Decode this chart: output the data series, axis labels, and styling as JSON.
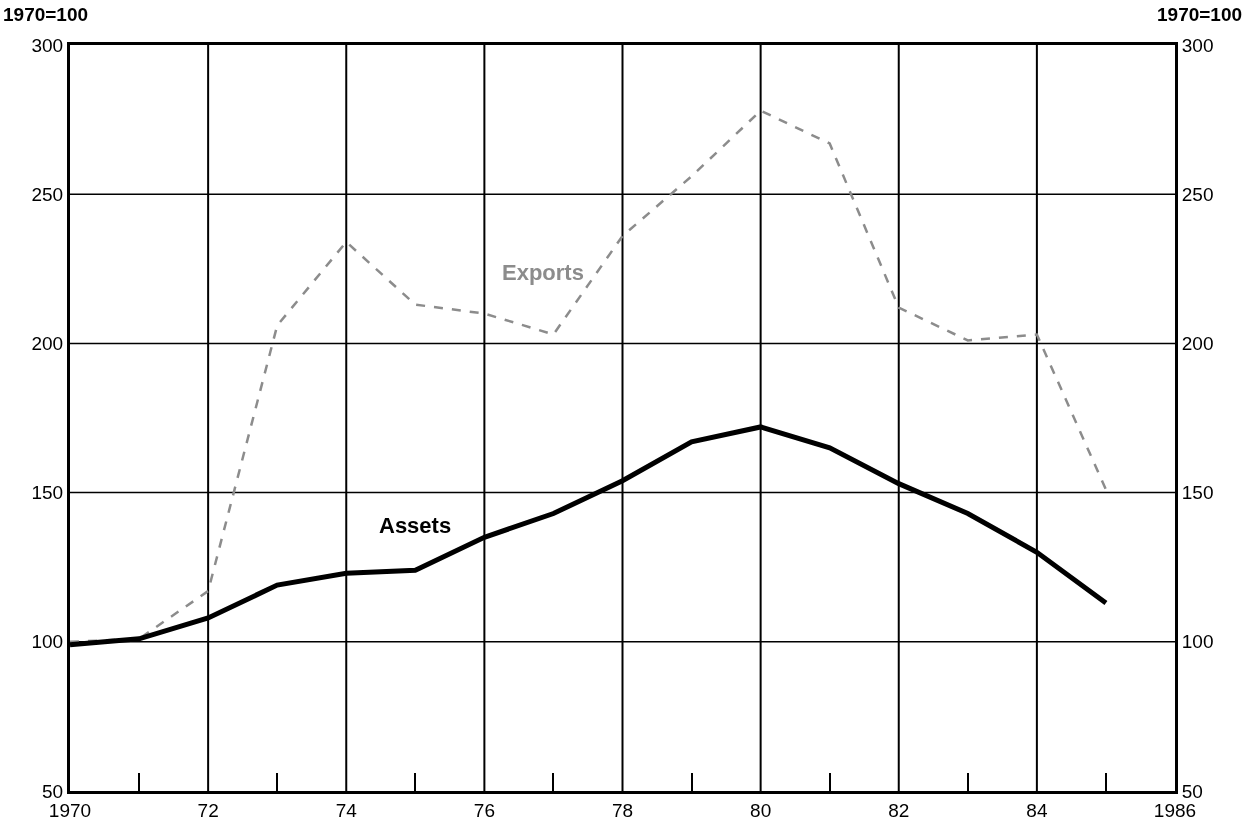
{
  "chart_data": {
    "type": "line",
    "ylabel": "1970=100",
    "y2label": "1970=100",
    "x": [
      1970,
      1971,
      1972,
      1973,
      1974,
      1975,
      1976,
      1977,
      1978,
      1979,
      1980,
      1981,
      1982,
      1983,
      1984,
      1985
    ],
    "series": [
      {
        "name": "Exports",
        "color": "#8c8c8c",
        "line_style": "dashed",
        "values": [
          100,
          101,
          117,
          206,
          234,
          213,
          210,
          203,
          236,
          256,
          278,
          267,
          212,
          201,
          203,
          151
        ]
      },
      {
        "name": "Assets",
        "color": "#000000",
        "line_style": "solid",
        "values": [
          99,
          101,
          108,
          119,
          123,
          124,
          135,
          143,
          154,
          167,
          172,
          165,
          153,
          143,
          130,
          113
        ]
      }
    ],
    "xlim": [
      1970,
      1986
    ],
    "xticks": [
      1970,
      {
        "value": 1972,
        "label": "72"
      },
      {
        "value": 1974,
        "label": "74"
      },
      {
        "value": 1976,
        "label": "76"
      },
      {
        "value": 1978,
        "label": "78"
      },
      {
        "value": 1980,
        "label": "80"
      },
      {
        "value": 1982,
        "label": "82"
      },
      {
        "value": 1984,
        "label": "84"
      },
      1986
    ],
    "ylim": [
      50,
      300
    ],
    "yticks": [
      50,
      100,
      150,
      200,
      250,
      300
    ],
    "y2lim": [
      50,
      300
    ],
    "y2ticks": [
      50,
      100,
      150,
      200,
      250,
      300
    ],
    "grid": true,
    "marker": "none"
  }
}
